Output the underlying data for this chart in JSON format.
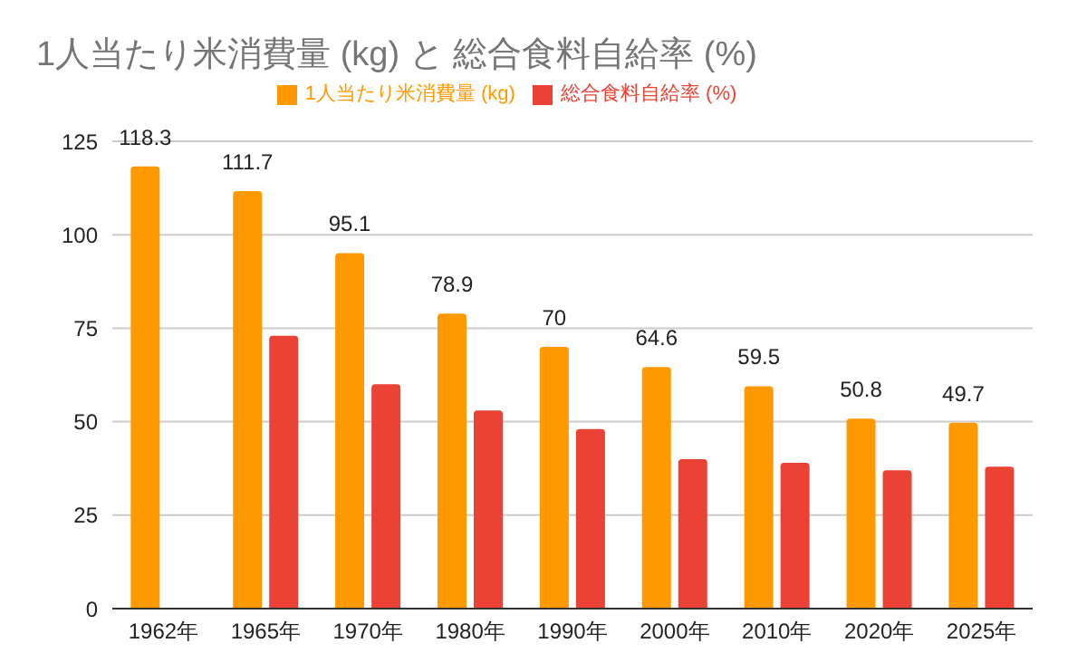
{
  "chart_data": {
    "type": "bar",
    "title": "1人当たり米消費量 (kg) と 総合食料自給率 (%)",
    "categories": [
      "1962年",
      "1965年",
      "1970年",
      "1980年",
      "1990年",
      "2000年",
      "2010年",
      "2020年",
      "2025年"
    ],
    "series": [
      {
        "name": "1人当たり米消費量 (kg)",
        "color": "#ff9900",
        "values": [
          118.3,
          111.7,
          95.1,
          78.9,
          70,
          64.6,
          59.5,
          50.8,
          49.7
        ],
        "value_labels": [
          "118.3",
          "111.7",
          "95.1",
          "78.9",
          "70",
          "64.6",
          "59.5",
          "50.8",
          "49.7"
        ]
      },
      {
        "name": "総合食料自給率 (%)",
        "color": "#ea4335",
        "values": [
          null,
          73,
          60,
          53,
          48,
          40,
          39,
          37,
          38
        ]
      }
    ],
    "ylim": [
      0,
      125
    ],
    "yticks": [
      0,
      25,
      50,
      75,
      100,
      125
    ],
    "grid": "y",
    "legend": "top"
  }
}
